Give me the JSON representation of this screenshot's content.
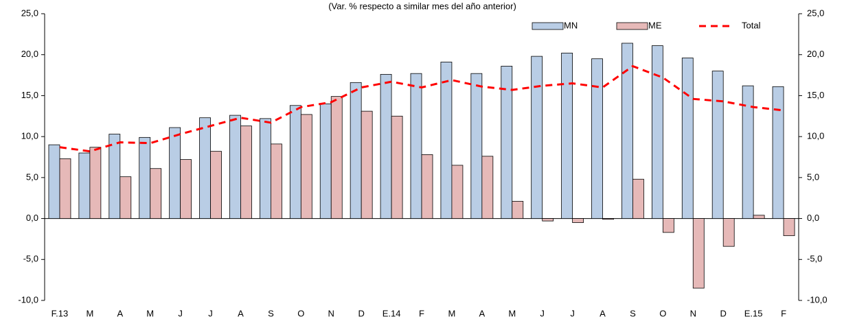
{
  "chart_data": {
    "type": "bar",
    "subtitle": "(Var. % respecto a similar mes del año anterior)",
    "categories": [
      "F.13",
      "M",
      "A",
      "M",
      "J",
      "J",
      "A",
      "S",
      "O",
      "N",
      "D",
      "E.14",
      "F",
      "M",
      "A",
      "M",
      "J",
      "J",
      "A",
      "S",
      "O",
      "N",
      "D",
      "E.15",
      "F"
    ],
    "series": [
      {
        "name": "MN",
        "type": "bar",
        "color": "#b9cde5",
        "values": [
          9.0,
          8.0,
          10.3,
          9.9,
          11.1,
          12.3,
          12.6,
          12.2,
          13.8,
          14.0,
          16.6,
          17.6,
          17.7,
          19.1,
          17.7,
          18.6,
          19.8,
          20.2,
          19.5,
          21.4,
          21.1,
          19.6,
          18.0,
          16.2,
          16.1
        ]
      },
      {
        "name": "ME",
        "type": "bar",
        "color": "#e6b9b8",
        "values": [
          7.3,
          8.7,
          5.1,
          6.1,
          7.2,
          8.2,
          11.3,
          9.1,
          12.7,
          14.9,
          13.1,
          12.5,
          7.8,
          6.5,
          7.6,
          2.1,
          -0.3,
          -0.5,
          -0.1,
          4.8,
          -1.7,
          -8.5,
          -3.4,
          0.4,
          -2.1
        ]
      },
      {
        "name": "Total",
        "type": "line",
        "color": "#ff0000",
        "values": [
          8.7,
          8.2,
          9.3,
          9.2,
          10.3,
          11.3,
          12.3,
          11.7,
          13.6,
          14.2,
          16.0,
          16.7,
          16.0,
          16.9,
          16.1,
          15.7,
          16.2,
          16.5,
          16.0,
          18.6,
          17.2,
          14.6,
          14.3,
          13.6,
          13.2
        ]
      }
    ],
    "ylim": [
      -10,
      25
    ],
    "yticks": [
      {
        "value": -10,
        "label": "-10,0"
      },
      {
        "value": -5,
        "label": "-5,0"
      },
      {
        "value": 0,
        "label": "0,0"
      },
      {
        "value": 5,
        "label": "5,0"
      },
      {
        "value": 10,
        "label": "10,0"
      },
      {
        "value": 15,
        "label": "15,0"
      },
      {
        "value": 20,
        "label": "20,0"
      },
      {
        "value": 25,
        "label": "25,0"
      }
    ],
    "y2lim": [
      -10,
      25
    ],
    "y2ticks": [
      {
        "value": -10,
        "label": "-10,0"
      },
      {
        "value": -5,
        "label": "-5,0"
      },
      {
        "value": 0,
        "label": "0,0"
      },
      {
        "value": 5,
        "label": "5,0"
      },
      {
        "value": 10,
        "label": "10,0"
      },
      {
        "value": 15,
        "label": "15,0"
      },
      {
        "value": 20,
        "label": "20,0"
      },
      {
        "value": 25,
        "label": "25,0"
      }
    ],
    "legend": "top-right"
  }
}
